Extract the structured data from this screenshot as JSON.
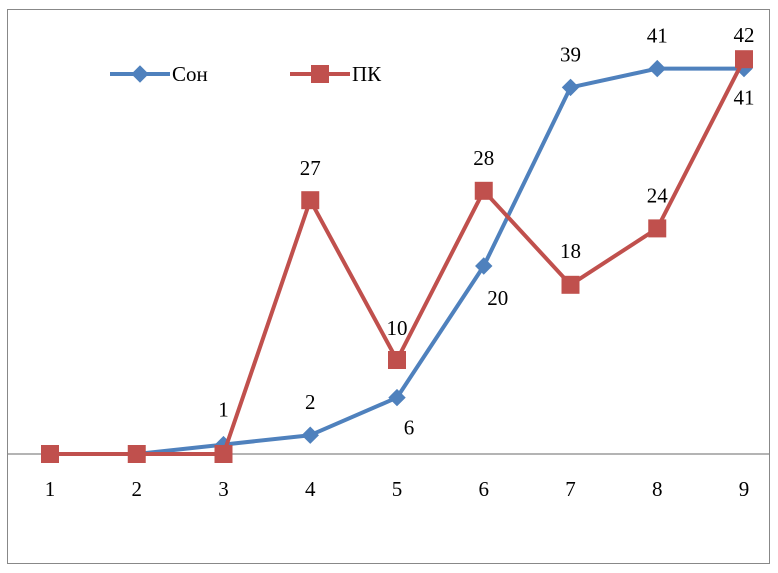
{
  "chart_data": {
    "type": "line",
    "title": "",
    "xlabel": "",
    "ylabel": "",
    "categories": [
      "1",
      "2",
      "3",
      "4",
      "5",
      "6",
      "7",
      "8",
      "9"
    ],
    "ylim": [
      0,
      42
    ],
    "grid": false,
    "legend_position": "top-left",
    "series": [
      {
        "name": "Сон",
        "color": "#4F81BD",
        "marker": "diamond",
        "values": [
          0,
          0,
          1,
          2,
          6,
          20,
          39,
          41,
          41
        ],
        "labels": [
          "",
          "",
          "1",
          "2",
          "6",
          "20",
          "39",
          "41",
          "41"
        ]
      },
      {
        "name": "ПК",
        "color": "#C0504D",
        "marker": "square",
        "values": [
          0,
          0,
          0,
          27,
          10,
          28,
          18,
          24,
          42
        ],
        "labels": [
          "",
          "",
          "",
          "27",
          "10",
          "28",
          "18",
          "24",
          "42"
        ]
      }
    ]
  }
}
